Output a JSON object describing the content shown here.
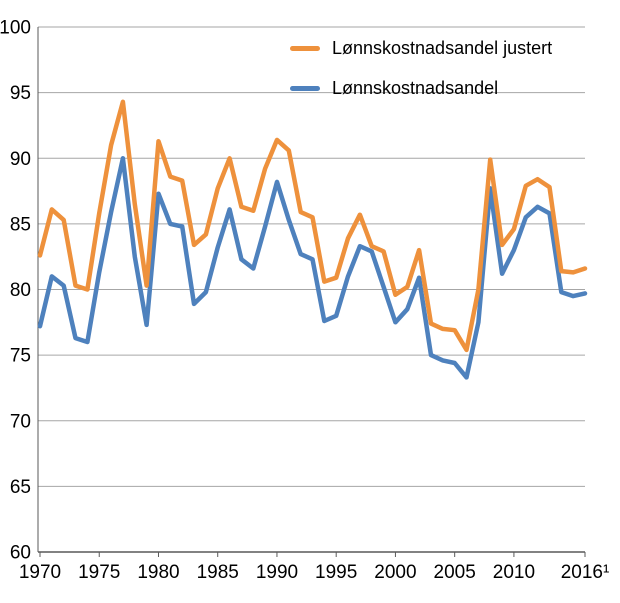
{
  "chart_data": {
    "type": "line",
    "title": "",
    "xlabel": "",
    "ylabel": "",
    "ylim": [
      60,
      100
    ],
    "yticks": [
      100,
      95,
      90,
      85,
      80,
      75,
      70,
      65,
      60
    ],
    "xticks": [
      {
        "year": 1970,
        "label": "1970"
      },
      {
        "year": 1975,
        "label": "1975"
      },
      {
        "year": 1980,
        "label": "1980"
      },
      {
        "year": 1985,
        "label": "1985"
      },
      {
        "year": 1990,
        "label": "1990"
      },
      {
        "year": 1995,
        "label": "1995"
      },
      {
        "year": 2000,
        "label": "2000"
      },
      {
        "year": 2005,
        "label": "2005"
      },
      {
        "year": 2010,
        "label": "2010"
      },
      {
        "year": 2016,
        "label": "2016¹"
      }
    ],
    "grid": "horizontal",
    "legend_position": "top-inside",
    "colors": {
      "grid": "#a6a6a6",
      "axis": "#595959"
    },
    "x": [
      1970,
      1971,
      1972,
      1973,
      1974,
      1975,
      1976,
      1977,
      1978,
      1979,
      1980,
      1981,
      1982,
      1983,
      1984,
      1985,
      1986,
      1987,
      1988,
      1989,
      1990,
      1991,
      1992,
      1993,
      1994,
      1995,
      1996,
      1997,
      1998,
      1999,
      2000,
      2001,
      2002,
      2003,
      2004,
      2005,
      2006,
      2007,
      2008,
      2009,
      2010,
      2011,
      2012,
      2013,
      2014,
      2015,
      2016
    ],
    "series": [
      {
        "name": "Lønnskostnadsandel justert",
        "color": "#EE913C",
        "values": [
          82.6,
          86.1,
          85.3,
          80.3,
          80.0,
          85.8,
          91.0,
          94.3,
          86.5,
          80.3,
          91.3,
          88.6,
          88.3,
          83.4,
          84.2,
          87.7,
          90.0,
          86.3,
          86.0,
          89.2,
          91.4,
          90.6,
          85.9,
          85.5,
          80.6,
          80.9,
          83.9,
          85.7,
          83.3,
          82.9,
          79.6,
          80.2,
          83.0,
          77.4,
          77.0,
          76.9,
          75.4,
          80.0,
          89.9,
          83.4,
          84.6,
          87.9,
          88.4,
          87.8,
          81.4,
          81.3,
          81.6
        ]
      },
      {
        "name": "Lønnskostnadsandel",
        "color": "#4E81BD",
        "values": [
          77.2,
          81.0,
          80.3,
          76.3,
          76.0,
          81.3,
          85.9,
          90.0,
          82.5,
          77.3,
          87.3,
          85.0,
          84.8,
          78.9,
          79.8,
          83.2,
          86.1,
          82.3,
          81.6,
          84.8,
          88.2,
          85.3,
          82.7,
          82.3,
          77.6,
          78.0,
          81.0,
          83.3,
          82.9,
          80.2,
          77.5,
          78.5,
          80.9,
          75.0,
          74.6,
          74.4,
          73.3,
          77.5,
          87.7,
          81.2,
          83.0,
          85.5,
          86.3,
          85.8,
          79.8,
          79.5,
          79.7
        ]
      }
    ]
  }
}
